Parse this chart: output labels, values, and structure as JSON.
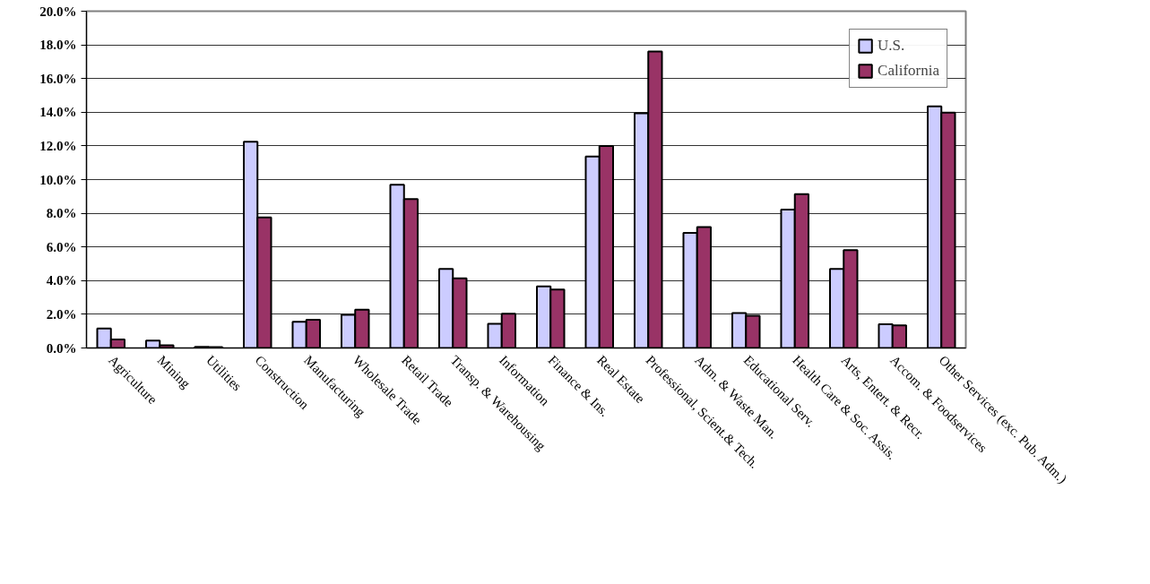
{
  "chart_data": {
    "type": "bar",
    "categories": [
      "Agriculture",
      "Mining",
      "Utilities",
      "Construction",
      "Manufacturing",
      "Wholesale Trade",
      "Retail Trade",
      "Transp. & Warehousing",
      "Information",
      "Finance & Ins.",
      "Real Estate",
      "Professional, Scient.& Tech.",
      "Adm. & Waste Man.",
      "Educational Serv.",
      "Health Care & Soc. Assis.",
      "Arts, Entert. & Recr.",
      "Accom. & Foodservices",
      "Other Services (exc. Pub. Adm.)"
    ],
    "series": [
      {
        "name": "U.S.",
        "color": "#ccccff",
        "values": [
          1.16,
          0.44,
          0.07,
          12.25,
          1.55,
          1.97,
          9.7,
          4.7,
          1.44,
          3.66,
          11.37,
          13.94,
          6.83,
          2.08,
          8.22,
          4.7,
          1.41,
          14.35
        ]
      },
      {
        "name": "California",
        "color": "#993366",
        "values": [
          0.51,
          0.16,
          0.05,
          7.75,
          1.67,
          2.27,
          8.84,
          4.14,
          2.04,
          3.47,
          12.0,
          17.6,
          7.18,
          1.92,
          9.14,
          5.81,
          1.34,
          13.98
        ]
      }
    ],
    "ylim": [
      0,
      20
    ],
    "yticks": [
      {
        "value": 0,
        "label": "0.0%"
      },
      {
        "value": 2,
        "label": "2.0%"
      },
      {
        "value": 4,
        "label": "4.0%"
      },
      {
        "value": 6,
        "label": "6.0%"
      },
      {
        "value": 8,
        "label": "8.0%"
      },
      {
        "value": 10,
        "label": "10.0%"
      },
      {
        "value": 12,
        "label": "12.0%"
      },
      {
        "value": 14,
        "label": "14.0%"
      },
      {
        "value": 16,
        "label": "16.0%"
      },
      {
        "value": 18,
        "label": "18.0%"
      },
      {
        "value": 20,
        "label": "20.0%"
      }
    ],
    "grid": "y",
    "legend": "top right"
  }
}
